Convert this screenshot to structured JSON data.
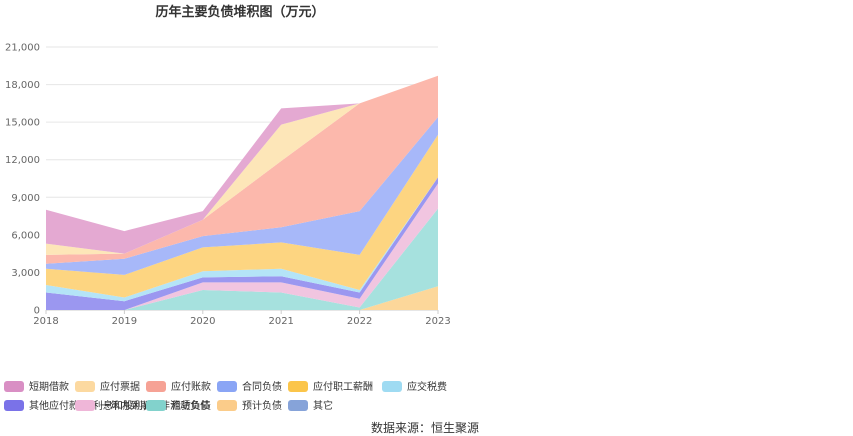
{
  "chart_data": {
    "type": "area",
    "stacked": true,
    "title": "历年主要负债堆积图（万元）",
    "xlabel": "",
    "ylabel": "",
    "x": [
      "2018",
      "2019",
      "2020",
      "2021",
      "2022",
      "2023"
    ],
    "ylim": [
      0,
      21000
    ],
    "yticks": [
      "0",
      "3,000",
      "6,000",
      "9,000",
      "12,000",
      "15,000",
      "18,000",
      "21,000"
    ],
    "ytick_values": [
      0,
      3000,
      6000,
      9000,
      12000,
      15000,
      18000,
      21000
    ],
    "grid": true,
    "legend_position": "bottom",
    "series": [
      {
        "name": "预计负债",
        "color": "#fcd79a",
        "values": [
          0,
          0,
          0,
          0,
          0,
          1900
        ]
      },
      {
        "name": "租赁负债",
        "color": "#a6e1de",
        "values": [
          0,
          0,
          1600,
          1400,
          200,
          6200
        ]
      },
      {
        "name": "一年内到期的非流动负债",
        "color": "#f1c5e0",
        "values": [
          0,
          0,
          600,
          800,
          700,
          2000
        ]
      },
      {
        "name": "其他应付款(含利息和股利)",
        "color": "#9b97f0",
        "values": [
          1400,
          700,
          400,
          500,
          500,
          500
        ]
      },
      {
        "name": "应交税费",
        "color": "#b4e4f7",
        "values": [
          600,
          300,
          500,
          600,
          200,
          0
        ]
      },
      {
        "name": "应付职工薪酬",
        "color": "#fdd581",
        "values": [
          1300,
          1800,
          1900,
          2100,
          2800,
          3400
        ]
      },
      {
        "name": "合同负债",
        "color": "#a7b8f9",
        "values": [
          400,
          1300,
          900,
          1200,
          3500,
          1400
        ]
      },
      {
        "name": "应付账款",
        "color": "#fcb8ac",
        "values": [
          700,
          400,
          1300,
          5300,
          8600,
          3300
        ]
      },
      {
        "name": "应付票据",
        "color": "#fde6b8",
        "values": [
          900,
          0,
          0,
          2900,
          0,
          0
        ]
      },
      {
        "name": "短期借款",
        "color": "#e4a9d2",
        "values": [
          2700,
          1800,
          700,
          1300,
          0,
          0
        ]
      },
      {
        "name": "其它",
        "color": "#8fa8d6",
        "values": [
          0,
          0,
          0,
          0,
          0,
          0
        ]
      }
    ],
    "legend_order": [
      "短期借款",
      "应付票据",
      "应付账款",
      "合同负债",
      "应付职工薪酬",
      "应交税费",
      "其他应付款(含利息和股利)",
      "一年内到期的非流动负债",
      "租赁负债",
      "预计负债",
      "其它"
    ],
    "legend_colors": [
      "#d98fc4",
      "#fcd9a0",
      "#f6a295",
      "#8aa5f5",
      "#fbc54a",
      "#9fdbf2",
      "#7a72e8",
      "#efb6d8",
      "#82d2cc",
      "#fbcc8a",
      "#86a3d9"
    ]
  },
  "footer": {
    "source": "数据来源：恒生聚源"
  }
}
